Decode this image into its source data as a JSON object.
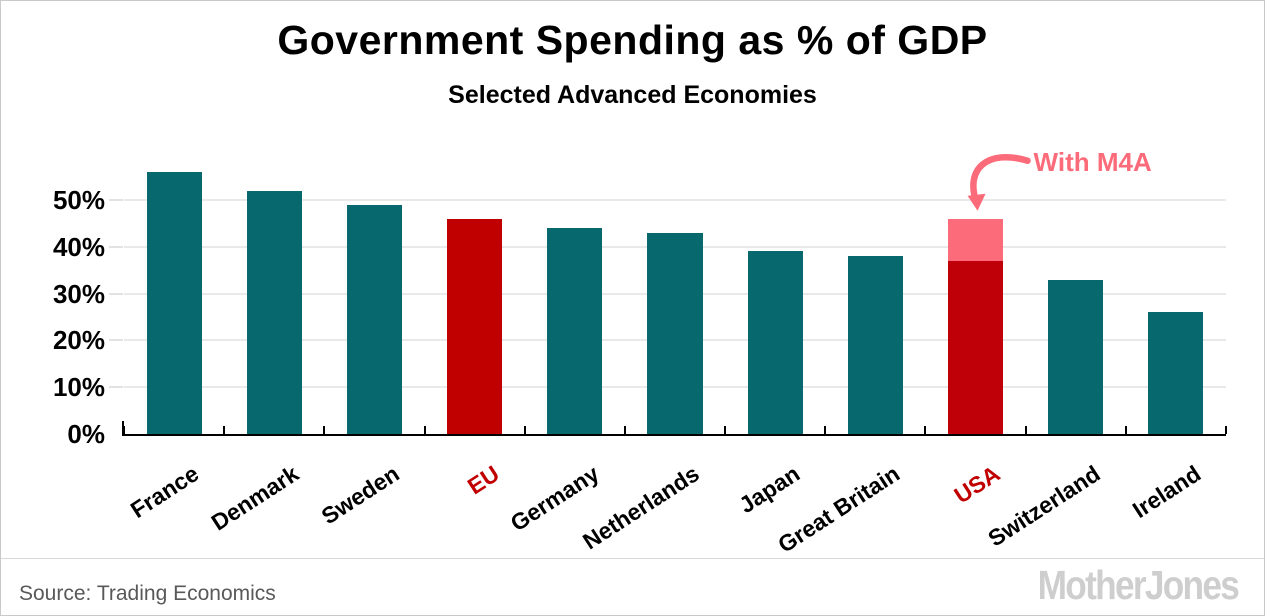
{
  "colors": {
    "teal": "#07696d",
    "red": "#c00000",
    "usa_red": "#c00008",
    "pink": "#fb6b7a",
    "black": "#000000",
    "grid": "#e9e9e9",
    "axis": "#000000",
    "source_text": "#595959",
    "logo_gray": "#cecece",
    "border": "#c9c9c9"
  },
  "chart_data": {
    "type": "bar",
    "title": "Government Spending as % of GDP",
    "subtitle": "Selected Advanced Economies",
    "categories": [
      "France",
      "Denmark",
      "Sweden",
      "EU",
      "Germany",
      "Netherlands",
      "Japan",
      "Great Britain",
      "USA",
      "Switzerland",
      "Ireland"
    ],
    "values": [
      56,
      52,
      49,
      46,
      44,
      43,
      39,
      38,
      37,
      33,
      26
    ],
    "bar_colors": [
      "teal",
      "teal",
      "teal",
      "red",
      "teal",
      "teal",
      "teal",
      "teal",
      "usa_red",
      "teal",
      "teal"
    ],
    "label_colors": [
      "black",
      "black",
      "black",
      "red",
      "black",
      "black",
      "black",
      "black",
      "red",
      "black",
      "black"
    ],
    "m4a": {
      "category": "USA",
      "base": 37,
      "total": 46,
      "segment_color": "pink"
    },
    "annotation": {
      "label": "With M4A",
      "target_category": "USA",
      "color": "pink"
    },
    "yticks": [
      {
        "label": "0%",
        "value": 0
      },
      {
        "label": "10%",
        "value": 10
      },
      {
        "label": "20%",
        "value": 20
      },
      {
        "label": "30%",
        "value": 30
      },
      {
        "label": "40%",
        "value": 40
      },
      {
        "label": "50%",
        "value": 50
      }
    ],
    "ylim": [
      0,
      60
    ],
    "xlabel": "",
    "ylabel": "",
    "grid": "horizontal",
    "legend": "none"
  },
  "footer": {
    "source": "Source: Trading Economics",
    "logo": "MotherJones"
  }
}
